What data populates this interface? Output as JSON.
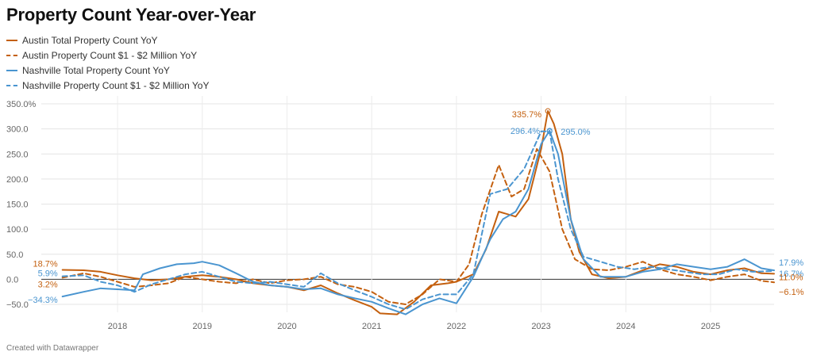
{
  "title": "Property Count Year-over-Year",
  "credit": "Created with Datawrapper",
  "chart_data": {
    "type": "line",
    "title": "Property Count Year-over-Year",
    "xlabel": "",
    "ylabel": "",
    "xlim": [
      2017.1,
      2025.75
    ],
    "ylim": [
      -50,
      350
    ],
    "y_ticks": [
      -50,
      0,
      50,
      100,
      150,
      200,
      250,
      300,
      350
    ],
    "y_tick_labels": [
      "−50.0",
      "0.0",
      "50.0",
      "100.0",
      "150.0",
      "200.0",
      "250.0",
      "300.0",
      "350.0%"
    ],
    "x_ticks": [
      2018,
      2019,
      2020,
      2021,
      2022,
      2023,
      2024,
      2025
    ],
    "x_tick_labels": [
      "2018",
      "2019",
      "2020",
      "2021",
      "2022",
      "2023",
      "2024",
      "2025"
    ],
    "grid": true,
    "legend_position": "top-left",
    "series": [
      {
        "name": "Austin Total Property Count YoY",
        "color": "#c4600f",
        "style": "solid",
        "x": [
          2017.35,
          2017.6,
          2017.8,
          2018.0,
          2018.2,
          2018.4,
          2018.6,
          2018.8,
          2019.0,
          2019.2,
          2019.4,
          2019.6,
          2019.8,
          2020.0,
          2020.2,
          2020.4,
          2020.6,
          2020.8,
          2021.0,
          2021.1,
          2021.3,
          2021.5,
          2021.7,
          2021.9,
          2022.0,
          2022.2,
          2022.35,
          2022.5,
          2022.7,
          2022.85,
          2023.0,
          2023.08,
          2023.15,
          2023.25,
          2023.35,
          2023.45,
          2023.6,
          2023.8,
          2024.0,
          2024.2,
          2024.4,
          2024.6,
          2024.8,
          2025.0,
          2025.2,
          2025.4,
          2025.6,
          2025.75
        ],
        "y": [
          18.7,
          18.0,
          15.0,
          8.0,
          2.0,
          -2.0,
          0.0,
          5.0,
          8.0,
          5.0,
          0.0,
          -8.0,
          -12.0,
          -15.0,
          -22.0,
          -12.0,
          -28.0,
          -42.0,
          -55.0,
          -68.0,
          -70.0,
          -45.0,
          -12.0,
          -8.0,
          -5.0,
          10.0,
          60.0,
          135.0,
          125.0,
          160.0,
          260.0,
          335.7,
          310.0,
          250.0,
          120.0,
          55.0,
          10.0,
          2.0,
          5.0,
          18.0,
          30.0,
          25.0,
          15.0,
          10.0,
          18.0,
          22.0,
          12.0,
          11.0
        ]
      },
      {
        "name": "Austin Property Count $1 - $2 Million YoY",
        "color": "#c4600f",
        "style": "dashed",
        "x": [
          2017.35,
          2017.6,
          2017.8,
          2018.0,
          2018.2,
          2018.4,
          2018.6,
          2018.8,
          2019.0,
          2019.2,
          2019.4,
          2019.6,
          2019.8,
          2020.0,
          2020.2,
          2020.4,
          2020.6,
          2020.8,
          2021.0,
          2021.2,
          2021.4,
          2021.6,
          2021.8,
          2022.0,
          2022.15,
          2022.3,
          2022.5,
          2022.65,
          2022.8,
          2022.95,
          2023.1,
          2023.25,
          2023.4,
          2023.6,
          2023.8,
          2024.0,
          2024.2,
          2024.4,
          2024.6,
          2024.8,
          2025.0,
          2025.2,
          2025.4,
          2025.6,
          2025.75
        ],
        "y": [
          3.2,
          12.0,
          5.0,
          -5.0,
          -15.0,
          -12.0,
          -8.0,
          5.0,
          0.0,
          -5.0,
          -8.0,
          0.0,
          -8.0,
          -2.0,
          0.0,
          5.0,
          -10.0,
          -15.0,
          -25.0,
          -45.0,
          -50.0,
          -30.0,
          0.0,
          -5.0,
          30.0,
          130.0,
          228.0,
          165.0,
          180.0,
          260.0,
          215.0,
          100.0,
          40.0,
          20.0,
          18.0,
          25.0,
          35.0,
          20.0,
          10.0,
          5.0,
          -2.0,
          5.0,
          10.0,
          -3.0,
          -6.1
        ]
      },
      {
        "name": "Nashville Total Property Count YoY",
        "color": "#4a95d0",
        "style": "solid",
        "x": [
          2017.35,
          2017.6,
          2017.8,
          2018.0,
          2018.2,
          2018.3,
          2018.5,
          2018.7,
          2018.9,
          2019.0,
          2019.2,
          2019.4,
          2019.6,
          2019.8,
          2020.0,
          2020.2,
          2020.4,
          2020.6,
          2020.8,
          2021.0,
          2021.2,
          2021.4,
          2021.6,
          2021.8,
          2022.0,
          2022.2,
          2022.4,
          2022.55,
          2022.7,
          2022.85,
          2023.0,
          2023.1,
          2023.2,
          2023.35,
          2023.5,
          2023.7,
          2024.0,
          2024.2,
          2024.4,
          2024.6,
          2024.8,
          2025.0,
          2025.2,
          2025.4,
          2025.6,
          2025.75
        ],
        "y": [
          -34.3,
          -25.0,
          -18.0,
          -20.0,
          -22.0,
          10.0,
          22.0,
          30.0,
          32.0,
          35.0,
          28.0,
          12.0,
          -5.0,
          -12.0,
          -15.0,
          -20.0,
          -18.0,
          -30.0,
          -38.0,
          -45.0,
          -58.0,
          -70.0,
          -50.0,
          -38.0,
          -48.0,
          5.0,
          80.0,
          120.0,
          135.0,
          180.0,
          270.0,
          296.4,
          250.0,
          120.0,
          40.0,
          5.0,
          5.0,
          15.0,
          20.0,
          30.0,
          25.0,
          20.0,
          25.0,
          40.0,
          22.0,
          17.9
        ]
      },
      {
        "name": "Nashville Property Count $1 - $2 Million YoY",
        "color": "#4a95d0",
        "style": "dashed",
        "x": [
          2017.35,
          2017.6,
          2017.8,
          2018.0,
          2018.2,
          2018.4,
          2018.6,
          2018.8,
          2019.0,
          2019.2,
          2019.4,
          2019.6,
          2019.8,
          2020.0,
          2020.2,
          2020.4,
          2020.6,
          2020.8,
          2021.0,
          2021.2,
          2021.4,
          2021.6,
          2021.8,
          2022.0,
          2022.2,
          2022.4,
          2022.6,
          2022.8,
          2023.0,
          2023.1,
          2023.2,
          2023.35,
          2023.5,
          2023.7,
          2023.9,
          2024.1,
          2024.3,
          2024.5,
          2024.7,
          2024.9,
          2025.1,
          2025.3,
          2025.5,
          2025.75
        ],
        "y": [
          5.9,
          8.0,
          -5.0,
          -12.0,
          -25.0,
          -10.0,
          0.0,
          10.0,
          15.0,
          5.0,
          -5.0,
          -8.0,
          -5.0,
          -10.0,
          -15.0,
          12.0,
          -8.0,
          -22.0,
          -35.0,
          -50.0,
          -60.0,
          -40.0,
          -30.0,
          -30.0,
          10.0,
          170.0,
          180.0,
          220.0,
          295.0,
          295.0,
          200.0,
          100.0,
          45.0,
          35.0,
          25.0,
          20.0,
          25.0,
          20.0,
          15.0,
          10.0,
          10.0,
          20.0,
          15.0,
          16.7
        ]
      }
    ],
    "annotations": [
      {
        "text": "18.7%",
        "x": 2017.35,
        "y": 18.7,
        "series": 0,
        "anchor": "end",
        "dx": -6,
        "dy": -8
      },
      {
        "text": "3.2%",
        "x": 2017.35,
        "y": 3.2,
        "series": 1,
        "anchor": "end",
        "dx": -6,
        "dy": 8
      },
      {
        "text": "5.9%",
        "x": 2017.35,
        "y": 5.9,
        "series": 3,
        "anchor": "end",
        "dx": -6,
        "dy": -4
      },
      {
        "text": "−34.3%",
        "x": 2017.35,
        "y": -34.3,
        "series": 2,
        "anchor": "end",
        "dx": -6,
        "dy": 4
      },
      {
        "text": "335.7%",
        "x": 2023.08,
        "y": 335.7,
        "series": 0,
        "anchor": "end",
        "dx": -8,
        "dy": 4
      },
      {
        "text": "296.4%",
        "x": 2023.1,
        "y": 296.4,
        "series": 2,
        "anchor": "end",
        "dx": -12,
        "dy": 0
      },
      {
        "text": "295.0%",
        "x": 2023.1,
        "y": 295.0,
        "series": 3,
        "anchor": "start",
        "dx": 14,
        "dy": 0
      },
      {
        "text": "17.9%",
        "x": 2025.75,
        "y": 17.9,
        "series": 2,
        "anchor": "start",
        "dx": 6,
        "dy": -10
      },
      {
        "text": "16.7%",
        "x": 2025.75,
        "y": 16.7,
        "series": 3,
        "anchor": "start",
        "dx": 6,
        "dy": 3
      },
      {
        "text": "11.0%",
        "x": 2025.75,
        "y": 11.0,
        "series": 0,
        "anchor": "start",
        "dx": 6,
        "dy": 4
      },
      {
        "text": "−6.1%",
        "x": 2025.75,
        "y": -6.1,
        "series": 1,
        "anchor": "start",
        "dx": 6,
        "dy": 12
      }
    ]
  }
}
